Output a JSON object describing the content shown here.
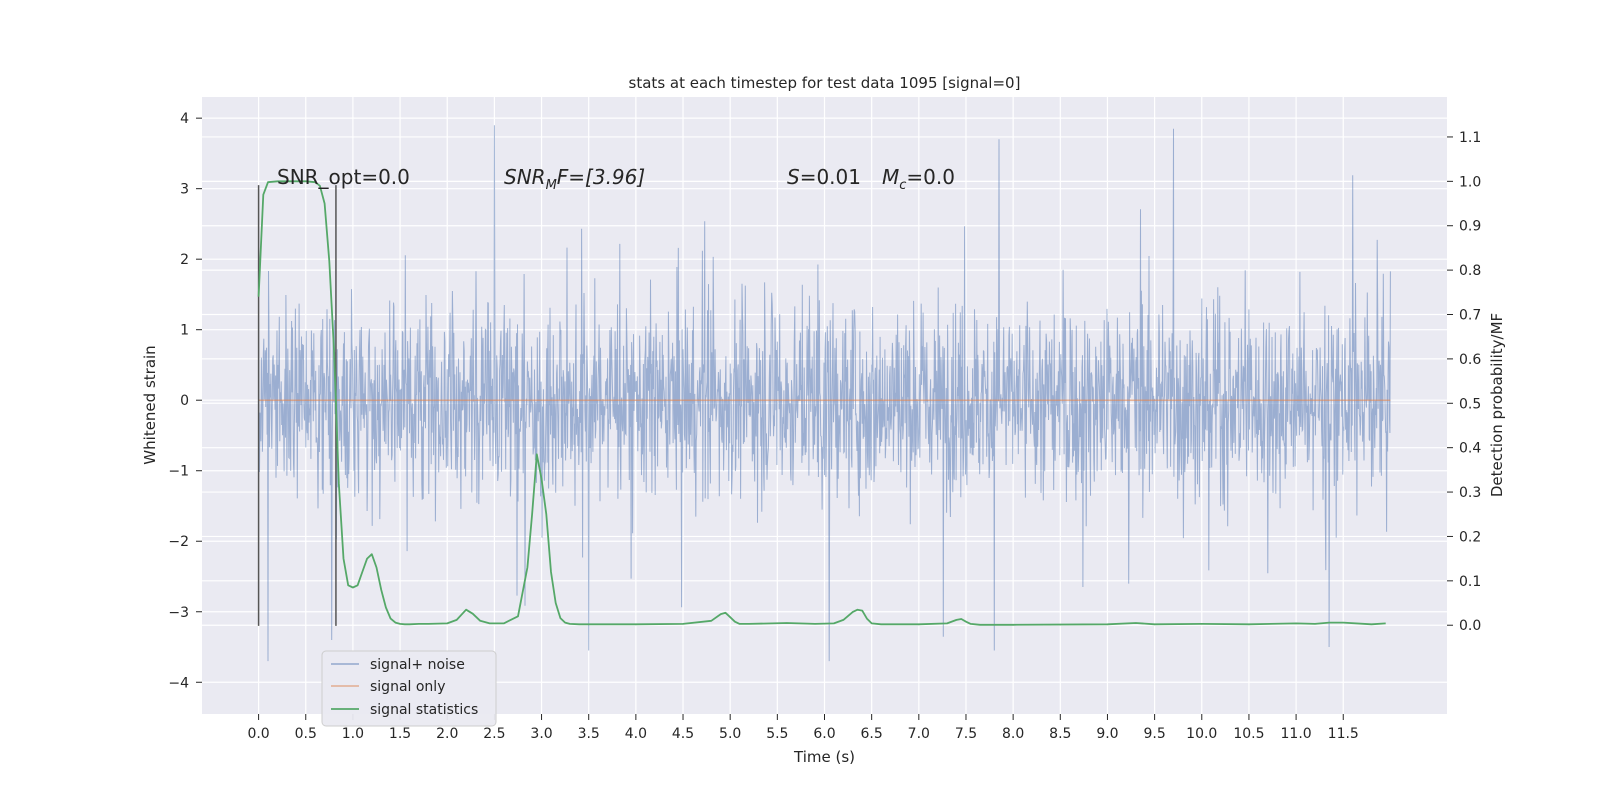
{
  "chart_data": {
    "type": "line",
    "title": "stats at each timestep for test data 1095 [signal=0]",
    "xlabel": "Time (s)",
    "ylabel": "Whitened strain",
    "ylabel_right": "Detection probability/MF",
    "xlim": [
      -0.6,
      12.6
    ],
    "ylim": [
      -4.45,
      4.3
    ],
    "ylim_right": [
      -0.2,
      1.19
    ],
    "x_ticks": [
      "0.0",
      "0.5",
      "1.0",
      "1.5",
      "2.0",
      "2.5",
      "3.0",
      "3.5",
      "4.0",
      "4.5",
      "5.0",
      "5.5",
      "6.0",
      "6.5",
      "7.0",
      "7.5",
      "8.0",
      "8.5",
      "9.0",
      "9.5",
      "10.0",
      "10.5",
      "11.0",
      "11.5"
    ],
    "x_tick_values": [
      0,
      0.5,
      1,
      1.5,
      2,
      2.5,
      3,
      3.5,
      4,
      4.5,
      5,
      5.5,
      6,
      6.5,
      7,
      7.5,
      8,
      8.5,
      9,
      9.5,
      10,
      10.5,
      11,
      11.5
    ],
    "y_ticks": [
      "4",
      "3",
      "2",
      "1",
      "0",
      "−1",
      "−2",
      "−3",
      "−4"
    ],
    "y_tick_values": [
      4,
      3,
      2,
      1,
      0,
      -1,
      -2,
      -3,
      -4
    ],
    "y_ticks_right": [
      "1.1",
      "1.0",
      "0.9",
      "0.8",
      "0.7",
      "0.6",
      "0.5",
      "0.4",
      "0.3",
      "0.2",
      "0.1",
      "0.0"
    ],
    "y_tick_values_right": [
      1.1,
      1.0,
      0.9,
      0.8,
      0.7,
      0.6,
      0.5,
      0.4,
      0.3,
      0.2,
      0.1,
      0.0
    ],
    "grid": true,
    "legend_position": "lower-left",
    "colors": {
      "noise": "#4c72b0",
      "signal": "#dd8452",
      "stats": "#55a868",
      "vline": "#555555",
      "background": "#eaeaf2",
      "grid": "#ffffff"
    },
    "series": [
      {
        "name": "signal+ noise",
        "axis": "left",
        "x_range": [
          0,
          12.0
        ],
        "envelope_core": [
          -1.4,
          1.25
        ],
        "peak_range": [
          -3.7,
          3.9
        ],
        "noted_extremes": [
          {
            "x": 2.5,
            "y": 3.9
          },
          {
            "x": 0.1,
            "y": -3.7
          },
          {
            "x": 6.05,
            "y": -3.7
          },
          {
            "x": 7.85,
            "y": 3.7
          },
          {
            "x": 9.7,
            "y": 3.85
          },
          {
            "x": 7.8,
            "y": -3.55
          },
          {
            "x": 11.35,
            "y": -3.5
          },
          {
            "x": 3.5,
            "y": -3.55
          }
        ]
      },
      {
        "name": "signal only",
        "axis": "left",
        "x": [
          0,
          12.0
        ],
        "y": [
          0,
          0
        ]
      },
      {
        "name": "signal statistics",
        "axis": "right",
        "x": [
          0.0,
          0.05,
          0.1,
          0.2,
          0.3,
          0.4,
          0.5,
          0.6,
          0.65,
          0.7,
          0.75,
          0.8,
          0.85,
          0.9,
          0.95,
          1.0,
          1.05,
          1.1,
          1.15,
          1.2,
          1.25,
          1.3,
          1.35,
          1.4,
          1.45,
          1.5,
          1.55,
          1.6,
          1.7,
          1.8,
          2.0,
          2.1,
          2.2,
          2.27,
          2.35,
          2.45,
          2.6,
          2.75,
          2.85,
          2.9,
          2.95,
          3.0,
          3.05,
          3.1,
          3.15,
          3.2,
          3.25,
          3.3,
          3.4,
          3.6,
          4.0,
          4.5,
          4.8,
          4.9,
          4.95,
          5.0,
          5.05,
          5.1,
          5.2,
          5.6,
          5.9,
          6.1,
          6.2,
          6.3,
          6.35,
          6.4,
          6.45,
          6.5,
          6.6,
          7.0,
          7.3,
          7.4,
          7.45,
          7.5,
          7.55,
          7.65,
          8.0,
          9.0,
          9.3,
          9.5,
          10.0,
          10.5,
          11.0,
          11.2,
          11.35,
          11.5,
          11.8,
          11.95
        ],
        "y": [
          0.74,
          0.97,
          0.998,
          1.0,
          1.0,
          1.0,
          1.0,
          0.998,
          0.99,
          0.95,
          0.82,
          0.62,
          0.32,
          0.15,
          0.09,
          0.085,
          0.09,
          0.12,
          0.15,
          0.16,
          0.13,
          0.08,
          0.04,
          0.015,
          0.006,
          0.003,
          0.002,
          0.002,
          0.003,
          0.003,
          0.004,
          0.012,
          0.035,
          0.026,
          0.01,
          0.004,
          0.004,
          0.02,
          0.13,
          0.25,
          0.385,
          0.33,
          0.25,
          0.12,
          0.05,
          0.016,
          0.006,
          0.003,
          0.002,
          0.002,
          0.002,
          0.003,
          0.01,
          0.025,
          0.028,
          0.018,
          0.008,
          0.003,
          0.003,
          0.005,
          0.003,
          0.004,
          0.012,
          0.03,
          0.035,
          0.033,
          0.015,
          0.004,
          0.002,
          0.002,
          0.004,
          0.012,
          0.014,
          0.008,
          0.003,
          0.001,
          0.001,
          0.002,
          0.005,
          0.002,
          0.003,
          0.002,
          0.004,
          0.003,
          0.006,
          0.006,
          0.002,
          0.004
        ]
      }
    ],
    "vlines": [
      {
        "x": 0.0,
        "ymin": -3.2,
        "ymax": 3.05
      },
      {
        "x": 0.82,
        "ymin": -3.2,
        "ymax": 3.05
      }
    ],
    "annotations": {
      "snr_opt": "SNR_opt=0.0",
      "snr_mf_main": "SNR",
      "snr_mf_sub": "M",
      "snr_mf_rest": "F=[3.96]",
      "s_var": "S",
      "s_rest": "=0.01",
      "mc_main": "M",
      "mc_sub": "c",
      "mc_rest": "=0.0"
    },
    "legend": [
      "signal+ noise",
      "signal only",
      "signal statistics"
    ]
  }
}
